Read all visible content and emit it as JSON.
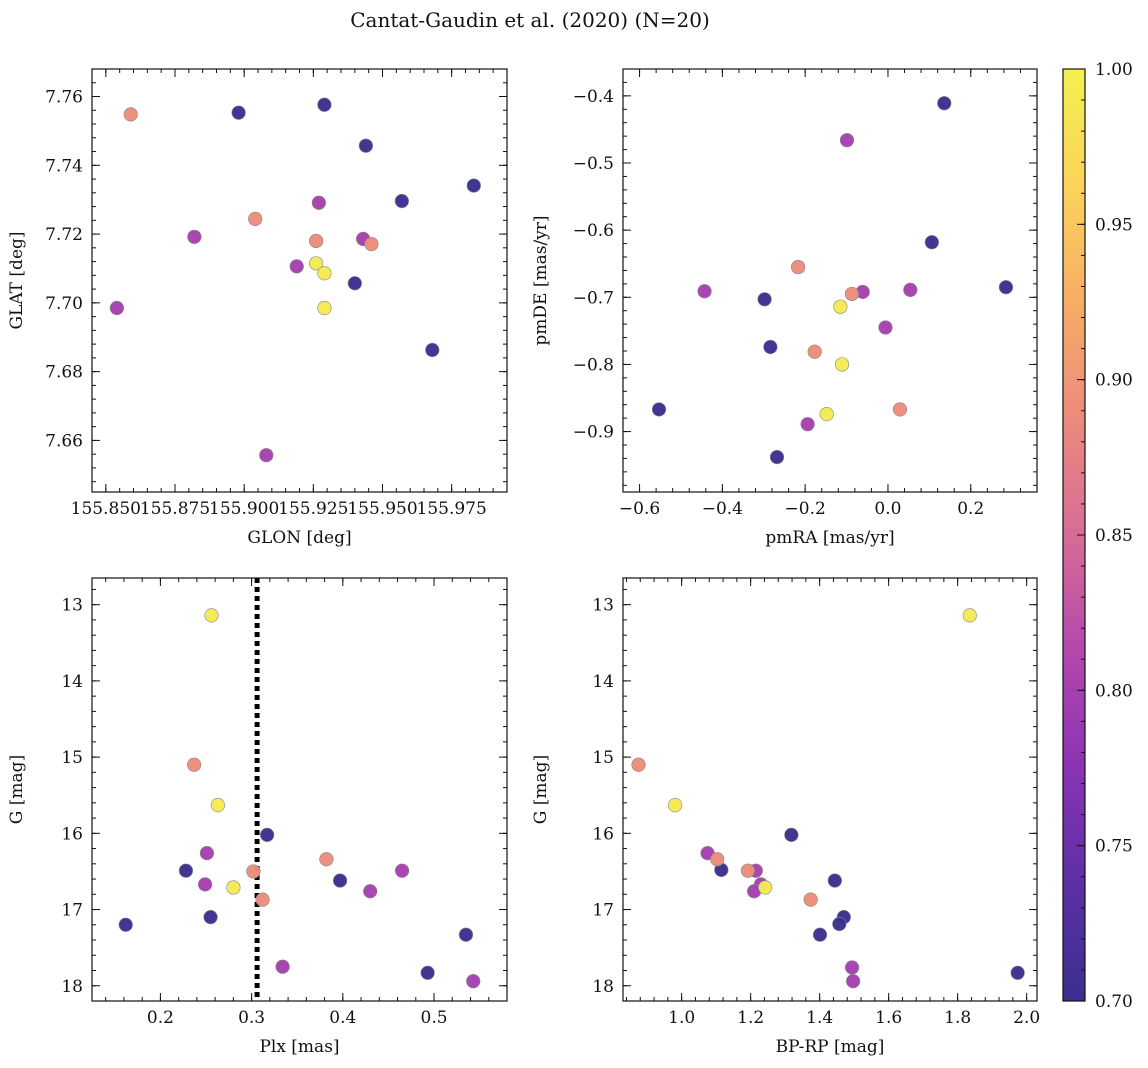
{
  "figure": {
    "title": "Cantat-Gaudin et al. (2020) (N=20)"
  },
  "colormap": {
    "name": "plasma-truncated",
    "stops": [
      "#3b2f8f",
      "#5b30a5",
      "#8a33b5",
      "#b447ad",
      "#d66c96",
      "#ec8a7c",
      "#f7ad66",
      "#fbd35a",
      "#f3f150"
    ],
    "min": 0.7,
    "max": 1.0,
    "ticks": [
      "0.70",
      "0.75",
      "0.80",
      "0.85",
      "0.90",
      "0.95",
      "1.00"
    ]
  },
  "chart_data": [
    {
      "type": "scatter",
      "id": "glon-glat",
      "xlabel": "GLON [deg]",
      "ylabel": "GLAT [deg]",
      "xlim": [
        155.845,
        155.995
      ],
      "ylim": [
        7.645,
        7.768
      ],
      "invert_y": false,
      "xticks": [
        "155.850",
        "155.875",
        "155.900",
        "155.925",
        "155.950",
        "155.975"
      ],
      "yticks": [
        "7.66",
        "7.68",
        "7.70",
        "7.72",
        "7.74",
        "7.76"
      ],
      "x": [
        155.859,
        155.898,
        155.929,
        155.944,
        155.957,
        155.983,
        155.968,
        155.94,
        155.882,
        155.854,
        155.908,
        155.927,
        155.919,
        155.943,
        155.904,
        155.926,
        155.946,
        155.926,
        155.929,
        155.929
      ],
      "y": [
        7.7548,
        7.7553,
        7.7576,
        7.7457,
        7.7296,
        7.7341,
        7.6863,
        7.7057,
        7.7192,
        7.6985,
        7.6557,
        7.7291,
        7.7106,
        7.7186,
        7.7244,
        7.718,
        7.7171,
        7.7115,
        7.7086,
        7.6985
      ],
      "c": [
        0.89,
        0.7,
        0.7,
        0.7,
        0.7,
        0.7,
        0.7,
        0.7,
        0.8,
        0.8,
        0.8,
        0.8,
        0.8,
        0.8,
        0.89,
        0.89,
        0.89,
        0.99,
        0.99,
        0.99
      ]
    },
    {
      "type": "scatter",
      "id": "pmra-pmde",
      "xlabel": "pmRA [mas/yr]",
      "ylabel": "pmDE [mas/yr]",
      "xlim": [
        -0.64,
        0.36
      ],
      "ylim": [
        -0.99,
        -0.36
      ],
      "invert_y": false,
      "xticks": [
        "-0.6",
        "-0.4",
        "-0.2",
        "0.0",
        "0.2"
      ],
      "yticks": [
        "-0.9",
        "-0.8",
        "-0.7",
        "-0.6",
        "-0.5",
        "-0.4"
      ],
      "x": [
        -0.217,
        -0.553,
        -0.298,
        -0.284,
        0.106,
        0.136,
        0.285,
        -0.268,
        -0.443,
        -0.099,
        -0.061,
        -0.006,
        0.054,
        -0.194,
        -0.177,
        -0.087,
        0.029,
        -0.115,
        -0.111,
        -0.148
      ],
      "y": [
        -0.655,
        -0.867,
        -0.703,
        -0.774,
        -0.618,
        -0.411,
        -0.685,
        -0.938,
        -0.691,
        -0.466,
        -0.692,
        -0.745,
        -0.689,
        -0.889,
        -0.781,
        -0.695,
        -0.867,
        -0.714,
        -0.8,
        -0.874
      ],
      "c": [
        0.89,
        0.7,
        0.7,
        0.7,
        0.7,
        0.7,
        0.7,
        0.7,
        0.8,
        0.8,
        0.8,
        0.8,
        0.8,
        0.8,
        0.89,
        0.89,
        0.89,
        0.99,
        0.99,
        0.99
      ]
    },
    {
      "type": "scatter",
      "id": "plx-g",
      "xlabel": "Plx [mas]",
      "ylabel": "G [mag]",
      "xlim": [
        0.125,
        0.58
      ],
      "ylim": [
        12.65,
        18.2
      ],
      "invert_y": true,
      "xticks": [
        "0.2",
        "0.3",
        "0.4",
        "0.5"
      ],
      "yticks": [
        "13",
        "14",
        "15",
        "16",
        "17",
        "18"
      ],
      "vline": 0.306,
      "x": [
        0.162,
        0.228,
        0.255,
        0.317,
        0.397,
        0.493,
        0.535,
        0.251,
        0.249,
        0.334,
        0.43,
        0.465,
        0.543,
        0.237,
        0.302,
        0.312,
        0.382,
        0.256,
        0.263,
        0.28
      ],
      "y": [
        17.2,
        16.49,
        17.1,
        16.02,
        16.62,
        17.83,
        17.33,
        16.26,
        16.67,
        17.75,
        16.76,
        16.49,
        17.94,
        15.1,
        16.5,
        16.87,
        16.34,
        13.14,
        15.63,
        16.71
      ],
      "c": [
        0.7,
        0.7,
        0.7,
        0.7,
        0.7,
        0.7,
        0.7,
        0.8,
        0.8,
        0.8,
        0.8,
        0.8,
        0.8,
        0.89,
        0.89,
        0.89,
        0.89,
        0.99,
        0.99,
        0.99
      ]
    },
    {
      "type": "scatter",
      "id": "bprp-g",
      "xlabel": "BP-RP [mag]",
      "ylabel": "G [mag]",
      "xlim": [
        0.83,
        2.03
      ],
      "ylim": [
        12.65,
        18.2
      ],
      "invert_y": true,
      "xticks": [
        "1.0",
        "1.2",
        "1.4",
        "1.6",
        "1.8",
        "2.0"
      ],
      "yticks": [
        "13",
        "14",
        "15",
        "16",
        "17",
        "18"
      ],
      "x": [
        1.115,
        1.318,
        1.444,
        1.47,
        1.457,
        1.401,
        1.974,
        1.075,
        1.23,
        1.215,
        1.21,
        1.494,
        1.497,
        0.875,
        1.103,
        1.192,
        1.374,
        1.835,
        0.981,
        1.242
      ],
      "y": [
        16.48,
        16.02,
        16.62,
        17.1,
        17.19,
        17.33,
        17.83,
        16.26,
        16.67,
        16.49,
        16.76,
        17.76,
        17.94,
        15.1,
        16.34,
        16.49,
        16.87,
        13.14,
        15.63,
        16.71
      ],
      "c": [
        0.7,
        0.7,
        0.7,
        0.7,
        0.7,
        0.7,
        0.7,
        0.8,
        0.8,
        0.8,
        0.8,
        0.8,
        0.8,
        0.89,
        0.89,
        0.89,
        0.89,
        0.99,
        0.99,
        0.99
      ]
    }
  ]
}
